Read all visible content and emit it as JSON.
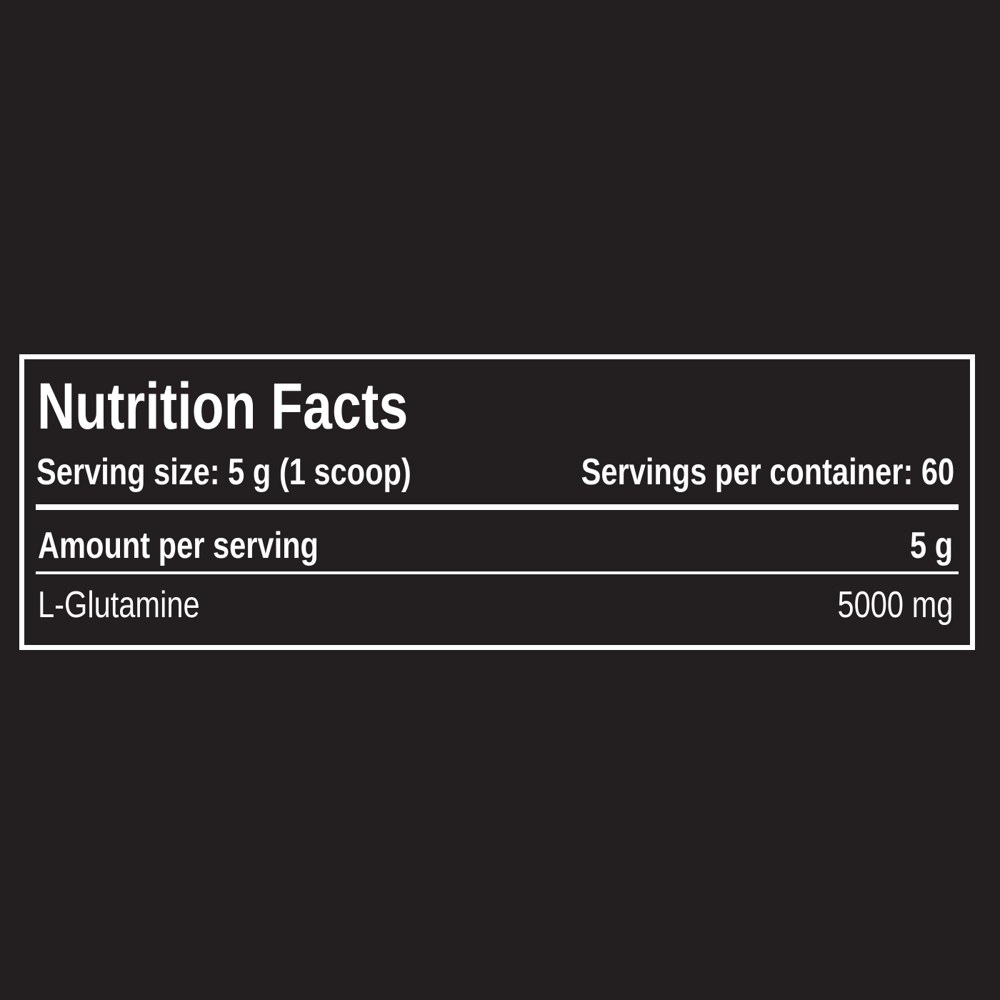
{
  "label": {
    "title": "Nutrition Facts",
    "serving_size": "Serving size: 5 g (1 scoop)",
    "servings_per_container": "Servings per container: 60",
    "amount_header": "Amount per serving",
    "amount_value": "5 g",
    "ingredients": [
      {
        "name": "L-Glutamine",
        "amount": "5000 mg"
      }
    ]
  },
  "colors": {
    "background": "#231f20",
    "foreground": "#ffffff"
  }
}
